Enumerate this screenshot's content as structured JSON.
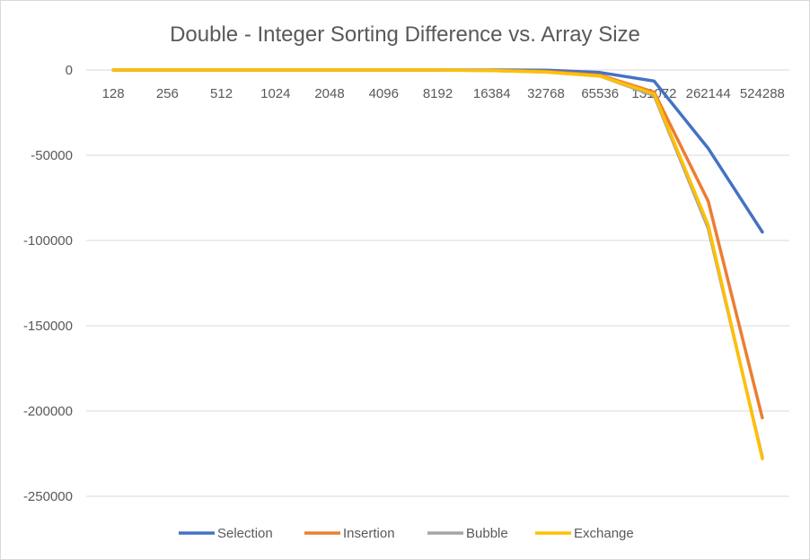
{
  "chart_data": {
    "type": "line",
    "title": "Double - Integer Sorting Difference vs. Array Size",
    "xlabel": "",
    "ylabel": "",
    "categories": [
      "128",
      "256",
      "512",
      "1024",
      "2048",
      "4096",
      "8192",
      "16384",
      "32768",
      "65536",
      "131072",
      "262144",
      "524288"
    ],
    "ylim": [
      -250000,
      0
    ],
    "yticks": [
      0,
      -50000,
      -100000,
      -150000,
      -200000,
      -250000
    ],
    "grid": true,
    "legend_position": "bottom",
    "series": [
      {
        "name": "Selection",
        "color": "#4472c4",
        "values": [
          0,
          0,
          0,
          0,
          0,
          0,
          0,
          0,
          -100,
          -1500,
          -6500,
          -46000,
          -95000
        ]
      },
      {
        "name": "Insertion",
        "color": "#ed7d31",
        "values": [
          0,
          0,
          0,
          0,
          0,
          0,
          0,
          -200,
          -800,
          -3000,
          -13000,
          -77000,
          -204000
        ]
      },
      {
        "name": "Bubble",
        "color": "#a5a5a5",
        "values": [
          0,
          0,
          0,
          0,
          0,
          0,
          0,
          -300,
          -1200,
          -3500,
          -15000,
          -93000,
          -227000
        ]
      },
      {
        "name": "Exchange",
        "color": "#ffc000",
        "values": [
          0,
          0,
          0,
          0,
          0,
          0,
          0,
          -300,
          -1200,
          -3500,
          -14000,
          -91000,
          -228000
        ]
      }
    ]
  }
}
